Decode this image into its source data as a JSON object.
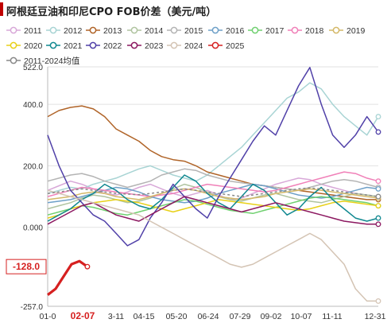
{
  "title": "阿根廷豆油和印尼CPO FOB价差（美元/吨）",
  "chart_data": {
    "type": "line",
    "title": "阿根廷豆油和印尼CPO FOB价差（美元/吨）",
    "ylim": [
      -257.0,
      522.0
    ],
    "yticks": [
      "522.0",
      "400.0",
      "200.0",
      "0.000",
      "-257.0"
    ],
    "x_ticks": [
      "01-0",
      "02-07",
      "3-11",
      "04-15",
      "05-20",
      "06-24",
      "07-29",
      "09-02",
      "10-07",
      "11-11",
      "12-31"
    ],
    "highlight_x_tick": "02-07",
    "grid": "horizontal",
    "legend_position": "top",
    "annotation": {
      "label": "-128.0",
      "value": -128.0,
      "series": "2025"
    },
    "series": [
      {
        "name": "2011",
        "color": "#d8a8d8",
        "values": [
          120,
          135,
          150,
          140,
          125,
          110,
          105,
          115,
          130,
          140,
          125,
          110,
          100,
          110,
          120,
          105,
          90,
          95,
          110,
          125,
          140,
          150,
          160,
          155,
          140,
          130,
          120,
          110,
          105,
          100
        ]
      },
      {
        "name": "2012",
        "color": "#a8d4d4",
        "values": [
          110,
          120,
          130,
          125,
          140,
          150,
          160,
          175,
          190,
          200,
          185,
          170,
          160,
          150,
          170,
          200,
          230,
          260,
          300,
          340,
          380,
          420,
          440,
          470,
          450,
          400,
          360,
          330,
          300,
          360
        ]
      },
      {
        "name": "2013",
        "color": "#b06428",
        "values": [
          360,
          380,
          390,
          395,
          385,
          360,
          320,
          300,
          280,
          250,
          230,
          220,
          215,
          200,
          180,
          170,
          160,
          150,
          140,
          135,
          130,
          125,
          120,
          115,
          110,
          105,
          100,
          95,
          90,
          90
        ]
      },
      {
        "name": "2014",
        "color": "#b0c4a0",
        "values": [
          60,
          70,
          80,
          95,
          105,
          100,
          90,
          80,
          85,
          95,
          110,
          125,
          140,
          130,
          115,
          100,
          90,
          85,
          95,
          105,
          110,
          100,
          90,
          85,
          80,
          90,
          100,
          110,
          105,
          100
        ]
      },
      {
        "name": "2015",
        "color": "#b4b4b4",
        "values": [
          150,
          160,
          170,
          175,
          165,
          150,
          140,
          130,
          140,
          150,
          170,
          180,
          190,
          185,
          170,
          160,
          150,
          145,
          140,
          135,
          130,
          125,
          120,
          130,
          140,
          150,
          155,
          150,
          140,
          130
        ]
      },
      {
        "name": "2016",
        "color": "#6ea0c8",
        "values": [
          80,
          85,
          90,
          100,
          110,
          120,
          130,
          125,
          115,
          100,
          90,
          85,
          80,
          85,
          95,
          110,
          120,
          130,
          140,
          135,
          125,
          115,
          105,
          100,
          95,
          100,
          110,
          120,
          130,
          125
        ]
      },
      {
        "name": "2017",
        "color": "#70d070",
        "values": [
          40,
          50,
          60,
          70,
          65,
          55,
          45,
          40,
          50,
          60,
          70,
          80,
          90,
          85,
          75,
          65,
          55,
          50,
          45,
          55,
          65,
          75,
          85,
          95,
          100,
          95,
          90,
          85,
          80,
          70
        ]
      },
      {
        "name": "2018",
        "color": "#f080b8",
        "values": [
          100,
          110,
          120,
          130,
          125,
          120,
          115,
          110,
          105,
          100,
          105,
          110,
          120,
          130,
          140,
          135,
          130,
          125,
          120,
          115,
          120,
          130,
          140,
          150,
          160,
          170,
          180,
          175,
          160,
          150
        ]
      },
      {
        "name": "2019",
        "color": "#d4b868",
        "values": [
          90,
          95,
          100,
          110,
          115,
          110,
          100,
          95,
          90,
          100,
          110,
          120,
          125,
          120,
          110,
          100,
          95,
          90,
          95,
          100,
          110,
          115,
          120,
          125,
          120,
          115,
          110,
          105,
          100,
          95
        ]
      },
      {
        "name": "2020",
        "color": "#e8d018",
        "values": [
          30,
          40,
          60,
          70,
          80,
          85,
          90,
          85,
          80,
          70,
          60,
          50,
          60,
          70,
          80,
          90,
          85,
          80,
          75,
          70,
          65,
          60,
          55,
          60,
          70,
          80,
          85,
          80,
          75,
          70
        ]
      },
      {
        "name": "2021",
        "color": "#108890",
        "values": [
          20,
          40,
          60,
          90,
          110,
          140,
          120,
          90,
          70,
          60,
          90,
          130,
          170,
          150,
          110,
          80,
          60,
          100,
          140,
          120,
          80,
          40,
          60,
          100,
          130,
          90,
          60,
          30,
          20,
          30
        ]
      },
      {
        "name": "2022",
        "color": "#5040a8",
        "values": [
          300,
          200,
          120,
          80,
          40,
          20,
          -20,
          -60,
          -40,
          30,
          80,
          140,
          100,
          60,
          30,
          100,
          160,
          220,
          280,
          330,
          300,
          380,
          460,
          520,
          400,
          300,
          260,
          300,
          360,
          310
        ]
      },
      {
        "name": "2023",
        "color": "#8c1860",
        "values": [
          10,
          30,
          50,
          70,
          80,
          60,
          40,
          30,
          20,
          40,
          60,
          80,
          100,
          90,
          80,
          70,
          60,
          50,
          60,
          70,
          80,
          70,
          60,
          50,
          40,
          30,
          20,
          15,
          10,
          10
        ]
      },
      {
        "name": "2024",
        "color": "#d4c4b4",
        "values": [
          120,
          110,
          100,
          90,
          80,
          70,
          60,
          50,
          40,
          20,
          0,
          -20,
          -40,
          -60,
          -80,
          -100,
          -120,
          -130,
          -120,
          -100,
          -80,
          -60,
          -40,
          -20,
          -40,
          -80,
          -120,
          -200,
          -240,
          -240
        ]
      },
      {
        "name": "2025",
        "color": "#d62020",
        "values": [
          -220,
          -200,
          -160,
          -120,
          -110,
          -128
        ],
        "x_end_fraction": 0.12
      },
      {
        "name": "2011-2024均值",
        "color": "#888888",
        "dashed": true,
        "values": [
          110,
          115,
          120,
          125,
          120,
          115,
          110,
          108,
          106,
          110,
          115,
          120,
          125,
          120,
          115,
          110,
          105,
          100,
          105,
          110,
          115,
          120,
          125,
          128,
          125,
          120,
          115,
          110,
          105,
          100
        ]
      }
    ]
  }
}
